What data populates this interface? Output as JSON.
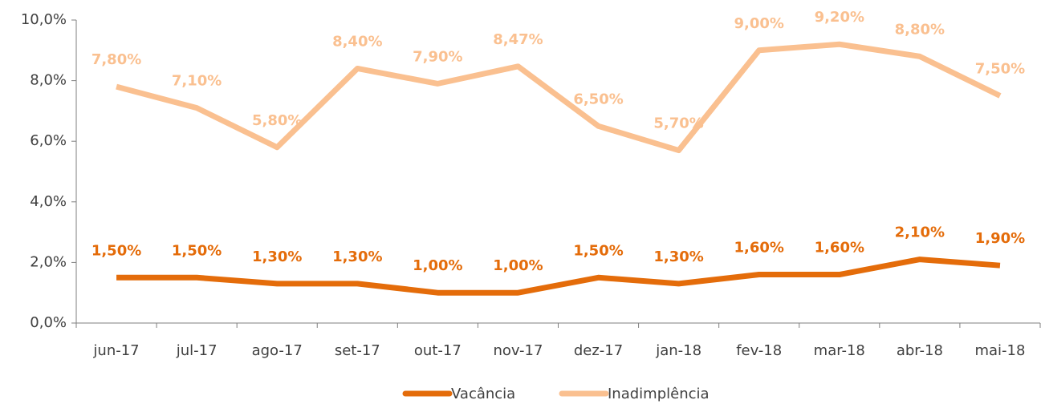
{
  "chart_data": {
    "type": "line",
    "categories": [
      "jun-17",
      "jul-17",
      "ago-17",
      "set-17",
      "out-17",
      "nov-17",
      "dez-17",
      "jan-18",
      "fev-18",
      "mar-18",
      "abr-18",
      "mai-18"
    ],
    "series": [
      {
        "name": "Vacância",
        "color": "#e46c0a",
        "values": [
          1.5,
          1.5,
          1.3,
          1.3,
          1.0,
          1.0,
          1.5,
          1.3,
          1.6,
          1.6,
          2.1,
          1.9
        ],
        "value_labels": [
          "1,50%",
          "1,50%",
          "1,30%",
          "1,30%",
          "1,00%",
          "1,00%",
          "1,50%",
          "1,30%",
          "1,60%",
          "1,60%",
          "2,10%",
          "1,90%"
        ]
      },
      {
        "name": "Inadimplência",
        "color": "#fac090",
        "values": [
          7.8,
          7.1,
          5.8,
          8.4,
          7.9,
          8.47,
          6.5,
          5.7,
          9.0,
          9.2,
          8.8,
          7.5
        ],
        "value_labels": [
          "7,80%",
          "7,10%",
          "5,80%",
          "8,40%",
          "7,90%",
          "8,47%",
          "6,50%",
          "5,70%",
          "9,00%",
          "9,20%",
          "8,80%",
          "7,50%"
        ]
      }
    ],
    "ylim": [
      0,
      10
    ],
    "yticks": [
      {
        "value": 0,
        "label": "0,0%"
      },
      {
        "value": 2,
        "label": "2,0%"
      },
      {
        "value": 4,
        "label": "4,0%"
      },
      {
        "value": 6,
        "label": "6,0%"
      },
      {
        "value": 8,
        "label": "8,0%"
      },
      {
        "value": 10,
        "label": "10,0%"
      }
    ],
    "legend": "bottom"
  }
}
